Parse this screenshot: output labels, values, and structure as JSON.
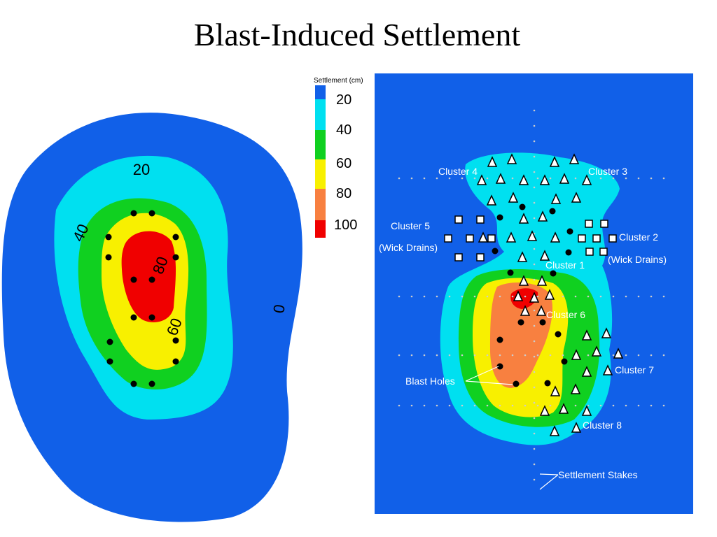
{
  "title": "Blast-Induced Settlement",
  "legend": {
    "title": "Settlement (cm)",
    "labels": [
      "20",
      "40",
      "60",
      "80",
      "100"
    ]
  },
  "left_map": {
    "contour_labels": [
      "20",
      "40",
      "80",
      "60",
      "0"
    ]
  },
  "right_map": {
    "labels": [
      "Cluster 4",
      "Cluster 3",
      "Cluster 5",
      "(Wick Drains)",
      "Cluster 2",
      "(Wick Drains)",
      "Cluster 1",
      "Cluster 6",
      "Cluster 7",
      "Blast Holes",
      "Cluster 8",
      "Settlement Stakes"
    ]
  }
}
